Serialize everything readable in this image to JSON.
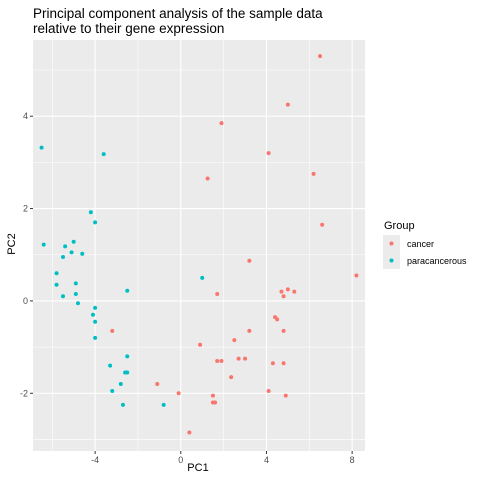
{
  "chart_data": {
    "type": "scatter",
    "title_lines": [
      "Principal component analysis of the sample data",
      "relative to their gene expression"
    ],
    "xlabel": "PC1",
    "ylabel": "PC2",
    "xlim": [
      -6.9,
      8.6
    ],
    "ylim": [
      -3.25,
      5.65
    ],
    "x_ticks": [
      -4,
      0,
      4,
      8
    ],
    "x_tick_labels": [
      "-4",
      "0",
      "4",
      "8"
    ],
    "y_ticks": [
      -2,
      0,
      2,
      4
    ],
    "y_tick_labels": [
      "-2",
      "0",
      "2",
      "4"
    ],
    "x_minor_ticks": [
      -6,
      -2,
      2,
      6
    ],
    "y_minor_ticks": [
      -3,
      -1,
      1,
      3,
      5
    ],
    "grid": true,
    "background": "#EBEBEB",
    "grid_color": "#FFFFFF",
    "legend": {
      "title": "Group",
      "position": "right"
    },
    "series": [
      {
        "name": "cancer",
        "color": "#F8766D",
        "points": [
          [
            6.5,
            5.3
          ],
          [
            5.0,
            4.25
          ],
          [
            1.9,
            3.85
          ],
          [
            4.1,
            3.2
          ],
          [
            6.2,
            2.75
          ],
          [
            1.25,
            2.65
          ],
          [
            6.6,
            1.65
          ],
          [
            3.2,
            0.87
          ],
          [
            8.2,
            0.55
          ],
          [
            5.0,
            0.25
          ],
          [
            4.7,
            0.2
          ],
          [
            1.7,
            0.15
          ],
          [
            5.3,
            0.2
          ],
          [
            4.8,
            0.1
          ],
          [
            4.4,
            -0.35
          ],
          [
            4.5,
            -0.4
          ],
          [
            4.8,
            -0.65
          ],
          [
            3.2,
            -0.65
          ],
          [
            2.5,
            -0.85
          ],
          [
            0.9,
            -0.95
          ],
          [
            -3.2,
            -0.65
          ],
          [
            2.7,
            -1.25
          ],
          [
            3.0,
            -1.25
          ],
          [
            1.7,
            -1.3
          ],
          [
            1.9,
            -1.3
          ],
          [
            4.3,
            -1.35
          ],
          [
            4.8,
            -1.35
          ],
          [
            2.35,
            -1.65
          ],
          [
            -1.1,
            -1.8
          ],
          [
            4.1,
            -1.95
          ],
          [
            -0.1,
            -2.0
          ],
          [
            4.9,
            -2.05
          ],
          [
            1.5,
            -2.05
          ],
          [
            1.6,
            -2.2
          ],
          [
            1.5,
            -2.2
          ],
          [
            0.4,
            -2.85
          ]
        ]
      },
      {
        "name": "paracancerous",
        "color": "#00BFC4",
        "points": [
          [
            -6.5,
            3.32
          ],
          [
            -3.6,
            3.18
          ],
          [
            -4.2,
            1.92
          ],
          [
            -4.0,
            1.7
          ],
          [
            -6.4,
            1.22
          ],
          [
            -5.0,
            1.28
          ],
          [
            -5.4,
            1.18
          ],
          [
            -5.5,
            0.95
          ],
          [
            -4.6,
            1.02
          ],
          [
            -5.1,
            1.05
          ],
          [
            -5.8,
            0.6
          ],
          [
            -5.8,
            0.35
          ],
          [
            -4.9,
            0.38
          ],
          [
            -4.9,
            0.15
          ],
          [
            -5.5,
            0.1
          ],
          [
            -4.8,
            -0.05
          ],
          [
            -4.0,
            -0.15
          ],
          [
            -4.1,
            -0.3
          ],
          [
            -4.0,
            -0.45
          ],
          [
            1.0,
            0.5
          ],
          [
            -2.5,
            0.22
          ],
          [
            -4.0,
            -0.8
          ],
          [
            -2.5,
            -1.2
          ],
          [
            -3.3,
            -1.4
          ],
          [
            -2.6,
            -1.55
          ],
          [
            -2.5,
            -1.55
          ],
          [
            -2.8,
            -1.8
          ],
          [
            -3.2,
            -1.95
          ],
          [
            -0.8,
            -2.25
          ],
          [
            -2.7,
            -2.25
          ]
        ]
      }
    ]
  }
}
